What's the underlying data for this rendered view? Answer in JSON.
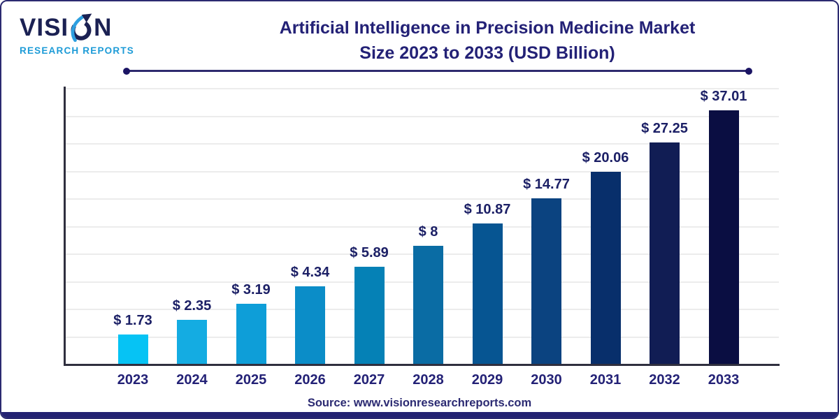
{
  "brand": {
    "name_part1": "VISI",
    "name_part2": "N",
    "tagline": "RESEARCH REPORTS",
    "navy": "#1b2153",
    "blue": "#2d9fe0",
    "tagline_blue": "#1d9bd7"
  },
  "header": {
    "title_line1": "Artificial Intelligence in Precision Medicine Market",
    "title_line2": "Size 2023 to 2033 (USD Billion)"
  },
  "footer": {
    "source": "Source: www.visionresearchreports.com"
  },
  "chart_data": {
    "type": "bar",
    "title": "Artificial Intelligence in Precision Medicine Market Size 2023 to 2033 (USD Billion)",
    "unit": "USD Billion",
    "categories": [
      "2023",
      "2024",
      "2025",
      "2026",
      "2027",
      "2028",
      "2029",
      "2030",
      "2031",
      "2032",
      "2033"
    ],
    "values": [
      1.73,
      2.35,
      3.19,
      4.34,
      5.89,
      8,
      10.87,
      14.77,
      20.06,
      27.25,
      37.01
    ],
    "value_labels": [
      "$ 1.73",
      "$ 2.35",
      "$ 3.19",
      "$ 4.34",
      "$ 5.89",
      "$ 8",
      "$ 10.87",
      "$ 14.77",
      "$ 20.06",
      "$ 27.25",
      "$ 37.01"
    ],
    "bar_colors": [
      "#06c3f4",
      "#14ace2",
      "#0e9ed8",
      "#0b8dc8",
      "#0581b6",
      "#0a6ca4",
      "#065592",
      "#0b4380",
      "#082f6b",
      "#111d54",
      "#0a0e42"
    ],
    "grid": true,
    "legend": "none",
    "xlabel": "",
    "ylabel": "",
    "ylim": [
      0,
      40
    ],
    "gridline_color": "#ececec",
    "axis_color": "#2f2f3f",
    "value_label_color": "#1c2066",
    "category_label_color": "#232176"
  },
  "theme": {
    "border_navy": "#2b2a70",
    "accent_navy": "#232272",
    "title_navy": "#232176",
    "divider_navy": "#2e2a6e"
  }
}
